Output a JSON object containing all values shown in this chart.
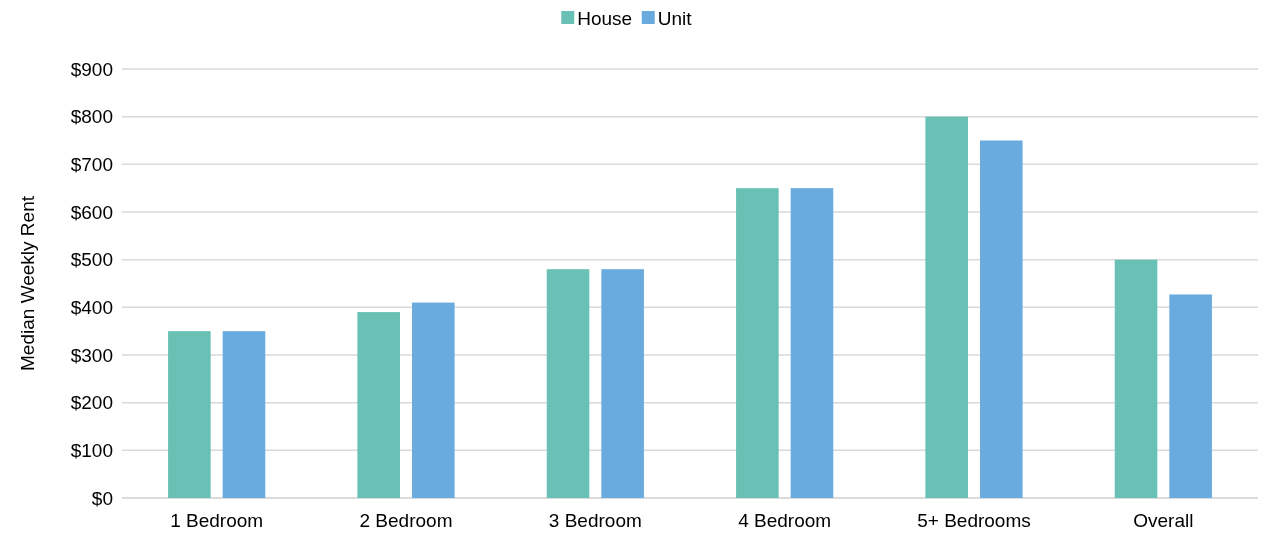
{
  "chart_data": {
    "type": "bar",
    "ylabel": "Median Weekly Rent",
    "categories": [
      "1 Bedroom",
      "2 Bedroom",
      "3 Bedroom",
      "4 Bedroom",
      "5+ Bedrooms",
      "Overall"
    ],
    "series": [
      {
        "name": "House",
        "color": "#68c1b4",
        "values": [
          350,
          390,
          480,
          650,
          800,
          500
        ]
      },
      {
        "name": "Unit",
        "color": "#6aabdf",
        "values": [
          350,
          410,
          480,
          650,
          750,
          427
        ]
      }
    ],
    "ylim": [
      0,
      900
    ],
    "yticks": [
      {
        "value": 0,
        "label": "$0"
      },
      {
        "value": 100,
        "label": "$100"
      },
      {
        "value": 200,
        "label": "$200"
      },
      {
        "value": 300,
        "label": "$300"
      },
      {
        "value": 400,
        "label": "$400"
      },
      {
        "value": 500,
        "label": "$500"
      },
      {
        "value": 600,
        "label": "$600"
      },
      {
        "value": 700,
        "label": "$700"
      },
      {
        "value": 800,
        "label": "$800"
      },
      {
        "value": 900,
        "label": "$900"
      }
    ],
    "grid": "y",
    "legend": "top"
  }
}
